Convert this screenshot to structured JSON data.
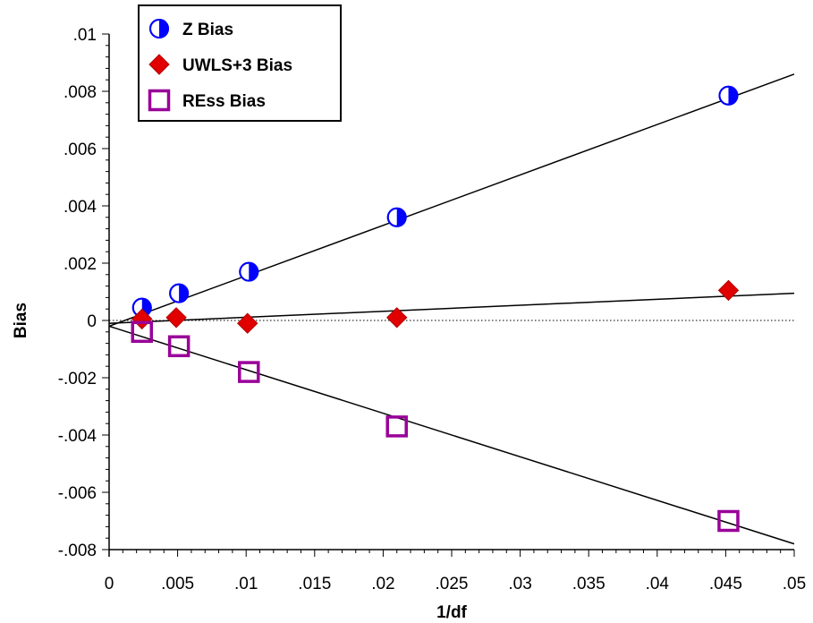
{
  "chart_data": {
    "type": "scatter",
    "xlabel": "1/df",
    "ylabel": "Bias",
    "xlim": [
      0,
      0.05
    ],
    "ylim": [
      -0.008,
      0.01
    ],
    "x_ticks": [
      "0",
      ".005",
      ".01",
      ".015",
      ".02",
      ".025",
      ".03",
      ".035",
      ".04",
      ".045",
      ".05"
    ],
    "y_ticks": [
      ".01",
      ".008",
      ".006",
      ".004",
      ".002",
      "0",
      "-.002",
      "-.004",
      "-.006",
      "-.008"
    ],
    "legend_position": "top-left",
    "zero_reference_line": true,
    "series": [
      {
        "name": "Z Bias",
        "marker": "half-filled-circle",
        "color": "#0000ff",
        "x": [
          0.0024,
          0.0051,
          0.0102,
          0.021,
          0.0452
        ],
        "y": [
          0.00045,
          0.00095,
          0.0017,
          0.0036,
          0.00785
        ],
        "fit": {
          "x": [
            0,
            0.05
          ],
          "y": [
            -0.0002,
            0.0086
          ]
        }
      },
      {
        "name": "UWLS+3 Bias",
        "marker": "diamond",
        "color": "#e00000",
        "x": [
          0.0024,
          0.0049,
          0.0101,
          0.021,
          0.0452
        ],
        "y": [
          5e-05,
          0.0001,
          -0.0001,
          0.0001,
          0.00105
        ],
        "fit": {
          "x": [
            0,
            0.05
          ],
          "y": [
            -0.0001,
            0.00095
          ]
        }
      },
      {
        "name": "REss Bias",
        "marker": "open-square",
        "color": "#990099",
        "x": [
          0.0024,
          0.0051,
          0.0102,
          0.021,
          0.0452
        ],
        "y": [
          -0.0004,
          -0.0009,
          -0.0018,
          -0.0037,
          -0.007
        ],
        "fit": {
          "x": [
            0,
            0.05
          ],
          "y": [
            -0.0002,
            -0.0078
          ]
        }
      }
    ]
  }
}
